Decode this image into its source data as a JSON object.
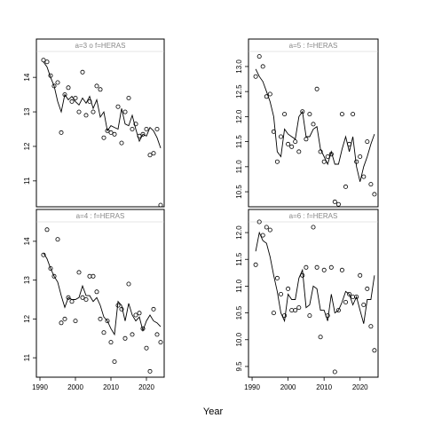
{
  "figure": {
    "xlabel": "Year",
    "x_ticks": [
      1990,
      2000,
      2010,
      2020
    ],
    "colors": {
      "frame": "#000000",
      "label": "#888888",
      "strip_bg": "#d9d9d9",
      "line": "#000000",
      "points": "#000000"
    }
  },
  "chart_data": [
    {
      "type": "line",
      "title": "a=3 : f=HERAS",
      "title_display": "a=3 o f=HERAS",
      "xlim": [
        1989,
        2025
      ],
      "ylim": [
        10.25,
        14.75
      ],
      "y_ticks": [
        11,
        12,
        13,
        14
      ],
      "x": [
        1991,
        1992,
        1993,
        1994,
        1995,
        1996,
        1997,
        1998,
        1999,
        2000,
        2001,
        2002,
        2003,
        2004,
        2005,
        2006,
        2007,
        2008,
        2009,
        2010,
        2011,
        2012,
        2013,
        2014,
        2015,
        2016,
        2017,
        2018,
        2019,
        2020,
        2021,
        2022,
        2023,
        2024
      ],
      "series": [
        {
          "kind": "points",
          "values": [
            14.5,
            14.45,
            14.05,
            13.75,
            13.85,
            12.4,
            13.5,
            13.7,
            13.3,
            13.4,
            13.0,
            14.15,
            12.9,
            13.3,
            13.0,
            13.75,
            13.65,
            12.25,
            12.45,
            12.4,
            12.35,
            13.15,
            12.1,
            13.0,
            13.4,
            12.5,
            12.65,
            12.3,
            12.35,
            12.5,
            11.75,
            11.8,
            12.5,
            10.3
          ]
        },
        {
          "kind": "line",
          "values": [
            14.45,
            14.3,
            14.0,
            13.75,
            13.3,
            13.0,
            13.5,
            13.35,
            13.45,
            13.3,
            13.2,
            13.4,
            13.25,
            13.45,
            13.1,
            13.35,
            12.85,
            13.0,
            12.45,
            12.6,
            12.55,
            12.5,
            13.1,
            12.65,
            12.6,
            12.9,
            12.5,
            12.15,
            12.35,
            12.3,
            12.55,
            12.45,
            12.25,
            11.95
          ]
        }
      ]
    },
    {
      "type": "line",
      "title": "a=5 : f=HERAS",
      "xlim": [
        1989,
        2025
      ],
      "ylim": [
        10.2,
        13.3
      ],
      "y_ticks": [
        10.5,
        11.0,
        11.5,
        12.0,
        12.5,
        13.0
      ],
      "x": [
        1991,
        1992,
        1993,
        1994,
        1995,
        1996,
        1997,
        1998,
        1999,
        2000,
        2001,
        2002,
        2003,
        2004,
        2005,
        2006,
        2007,
        2008,
        2009,
        2010,
        2011,
        2012,
        2013,
        2014,
        2015,
        2016,
        2017,
        2018,
        2019,
        2020,
        2021,
        2022,
        2023,
        2024
      ],
      "series": [
        {
          "kind": "points",
          "values": [
            12.8,
            13.2,
            13.0,
            12.4,
            12.45,
            11.7,
            11.1,
            11.6,
            12.05,
            11.45,
            11.4,
            11.5,
            11.3,
            12.1,
            11.55,
            12.05,
            11.85,
            12.55,
            11.3,
            11.1,
            11.2,
            11.25,
            10.3,
            10.25,
            12.05,
            10.6,
            11.45,
            12.05,
            11.1,
            11.2,
            10.8,
            11.5,
            10.65,
            10.45
          ]
        },
        {
          "kind": "line",
          "values": [
            12.95,
            12.8,
            12.7,
            12.5,
            12.3,
            12.0,
            11.3,
            11.2,
            11.75,
            11.65,
            11.6,
            11.55,
            12.0,
            12.1,
            11.6,
            11.6,
            11.75,
            11.8,
            11.35,
            11.2,
            11.05,
            11.3,
            11.05,
            11.05,
            11.35,
            11.6,
            11.3,
            11.6,
            11.0,
            10.7,
            11.0,
            11.2,
            11.45,
            11.65
          ]
        }
      ]
    },
    {
      "type": "line",
      "title": "a=4 : f=HERAS",
      "xlim": [
        1989,
        2025
      ],
      "ylim": [
        10.5,
        14.5
      ],
      "y_ticks": [
        11,
        12,
        13,
        14
      ],
      "x": [
        1991,
        1992,
        1993,
        1994,
        1995,
        1996,
        1997,
        1998,
        1999,
        2000,
        2001,
        2002,
        2003,
        2004,
        2005,
        2006,
        2007,
        2008,
        2009,
        2010,
        2011,
        2012,
        2013,
        2014,
        2015,
        2016,
        2017,
        2018,
        2019,
        2020,
        2021,
        2022,
        2023,
        2024
      ],
      "series": [
        {
          "kind": "points",
          "values": [
            13.65,
            14.3,
            13.3,
            13.1,
            14.05,
            11.9,
            12.0,
            12.55,
            12.45,
            11.95,
            13.2,
            12.55,
            12.5,
            13.1,
            13.1,
            12.7,
            12.0,
            11.65,
            11.95,
            11.4,
            10.9,
            12.35,
            12.25,
            11.5,
            12.9,
            11.6,
            12.1,
            12.15,
            11.75,
            11.25,
            10.65,
            12.25,
            11.6,
            11.4
          ]
        },
        {
          "kind": "line",
          "values": [
            13.7,
            13.55,
            13.3,
            13.1,
            12.95,
            12.6,
            12.3,
            12.55,
            12.5,
            12.5,
            12.55,
            12.85,
            12.6,
            12.6,
            12.45,
            12.55,
            12.35,
            12.05,
            11.95,
            11.75,
            11.6,
            12.45,
            12.35,
            11.95,
            12.4,
            12.1,
            11.95,
            12.05,
            11.7,
            11.95,
            12.1,
            11.95,
            11.9,
            11.8
          ]
        }
      ]
    },
    {
      "type": "line",
      "title": "a=6 : f=HERAS",
      "xlim": [
        1989,
        2025
      ],
      "ylim": [
        9.3,
        12.2
      ],
      "y_ticks": [
        9.5,
        10.0,
        10.5,
        11.0,
        11.5,
        12.0
      ],
      "x": [
        1991,
        1992,
        1993,
        1994,
        1995,
        1996,
        1997,
        1998,
        1999,
        2000,
        2001,
        2002,
        2003,
        2004,
        2005,
        2006,
        2007,
        2008,
        2009,
        2010,
        2011,
        2012,
        2013,
        2014,
        2015,
        2016,
        2017,
        2018,
        2019,
        2020,
        2021,
        2022,
        2023,
        2024
      ],
      "series": [
        {
          "kind": "points",
          "values": [
            11.4,
            12.2,
            11.95,
            12.1,
            12.05,
            10.5,
            11.15,
            10.85,
            10.45,
            10.95,
            10.55,
            10.55,
            10.6,
            11.2,
            11.35,
            10.45,
            12.1,
            11.35,
            10.05,
            11.3,
            10.45,
            11.35,
            9.4,
            10.55,
            11.3,
            10.7,
            10.85,
            10.8,
            10.8,
            11.2,
            10.65,
            10.95,
            10.25,
            9.8
          ]
        },
        {
          "kind": "line",
          "values": [
            11.65,
            12.0,
            11.85,
            11.8,
            11.55,
            11.2,
            10.9,
            10.5,
            10.35,
            10.85,
            10.75,
            10.75,
            11.15,
            11.3,
            10.6,
            10.65,
            11.0,
            10.95,
            10.55,
            10.55,
            10.35,
            10.85,
            10.5,
            10.55,
            10.7,
            10.9,
            10.85,
            10.65,
            10.8,
            10.55,
            10.3,
            10.75,
            10.75,
            11.2
          ]
        }
      ]
    }
  ]
}
